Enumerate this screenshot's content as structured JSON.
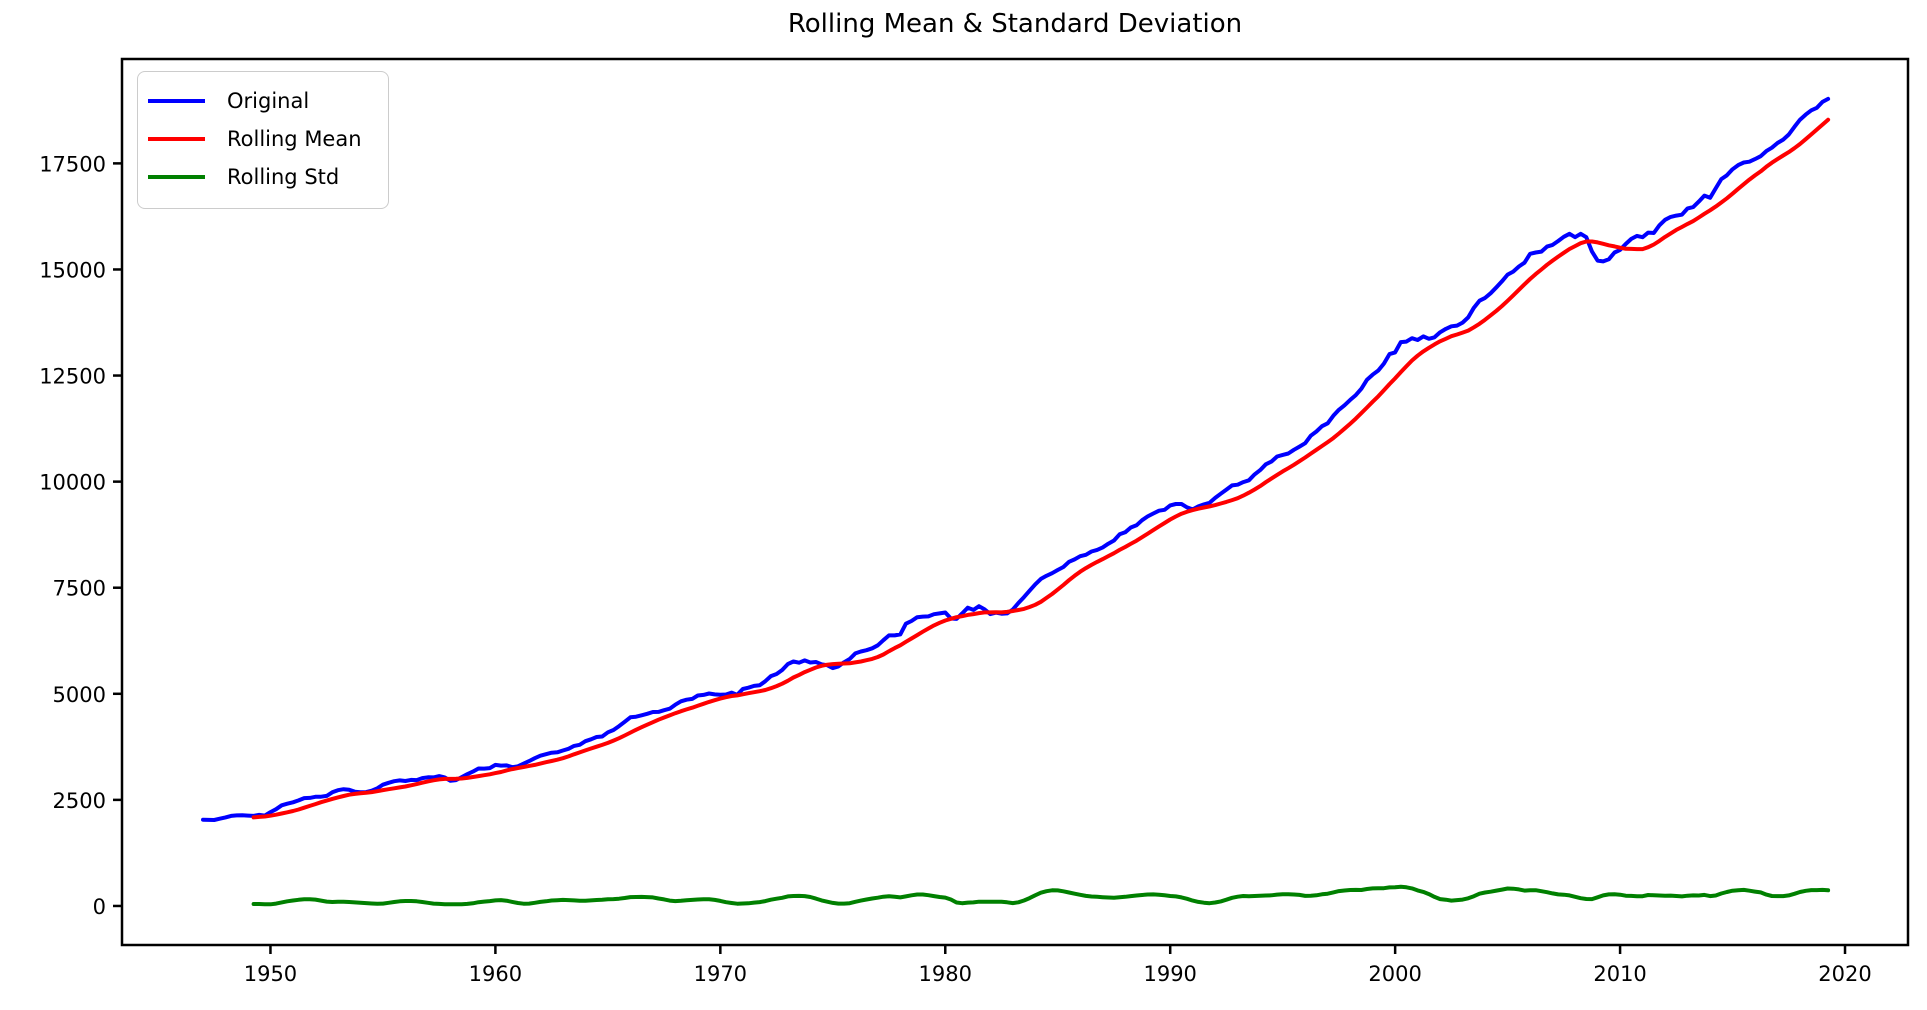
{
  "chart_data": {
    "type": "line",
    "title": "Rolling Mean & Standard Deviation",
    "xlabel": "",
    "ylabel": "",
    "grid": false,
    "legend_position": "upper left",
    "xlim": [
      1943.4,
      2022.8
    ],
    "ylim": [
      -920,
      19960
    ],
    "x_tick_years": [
      1950,
      1960,
      1970,
      1980,
      1990,
      2000,
      2010,
      2020
    ],
    "x_tick_labels": [
      "1950",
      "1960",
      "1970",
      "1980",
      "1990",
      "2000",
      "2010",
      "2020"
    ],
    "y_tick_values": [
      0,
      2500,
      5000,
      7500,
      10000,
      12500,
      15000,
      17500
    ],
    "y_tick_labels": [
      "0",
      "2500",
      "5000",
      "7500",
      "10000",
      "12500",
      "15000",
      "17500"
    ],
    "x_start": 1947.0,
    "x_step": 0.25,
    "rolling_window": 10,
    "series": [
      {
        "name": "Original",
        "color": "#0000ff",
        "derived": "none",
        "values": [
          2034,
          2029,
          2025,
          2056,
          2087,
          2122,
          2135,
          2137,
          2130,
          2123,
          2147,
          2129,
          2212,
          2281,
          2372,
          2411,
          2444,
          2488,
          2542,
          2547,
          2573,
          2574,
          2593,
          2679,
          2729,
          2751,
          2737,
          2692,
          2681,
          2684,
          2717,
          2773,
          2858,
          2902,
          2941,
          2958,
          2945,
          2970,
          2967,
          3013,
          3031,
          3030,
          3060,
          3028,
          2949,
          2966,
          3034,
          3106,
          3166,
          3240,
          3238,
          3249,
          3324,
          3308,
          3313,
          3271,
          3291,
          3352,
          3413,
          3482,
          3540,
          3577,
          3613,
          3622,
          3663,
          3704,
          3771,
          3797,
          3882,
          3928,
          3982,
          3994,
          4093,
          4147,
          4239,
          4340,
          4445,
          4461,
          4493,
          4529,
          4570,
          4574,
          4613,
          4648,
          4744,
          4823,
          4860,
          4880,
          4960,
          4975,
          5008,
          4985,
          4977,
          4983,
          5029,
          4976,
          5114,
          5143,
          5186,
          5200,
          5296,
          5418,
          5467,
          5560,
          5699,
          5761,
          5732,
          5787,
          5737,
          5750,
          5695,
          5673,
          5605,
          5646,
          5743,
          5820,
          5952,
          5996,
          6028,
          6072,
          6143,
          6264,
          6377,
          6377,
          6399,
          6652,
          6716,
          6806,
          6819,
          6825,
          6876,
          6894,
          6916,
          6774,
          6766,
          6893,
          7030,
          6978,
          7064,
          6990,
          6879,
          6912,
          6887,
          6894,
          6984,
          7140,
          7278,
          7429,
          7577,
          7707,
          7780,
          7843,
          7918,
          7989,
          8110,
          8168,
          8243,
          8276,
          8354,
          8392,
          8451,
          8538,
          8612,
          8758,
          8806,
          8920,
          8972,
          9090,
          9181,
          9249,
          9316,
          9336,
          9441,
          9473,
          9474,
          9392,
          9346,
          9417,
          9464,
          9501,
          9617,
          9716,
          9812,
          9912,
          9928,
          9988,
          10032,
          10170,
          10271,
          10409,
          10473,
          10593,
          10629,
          10662,
          10751,
          10825,
          10905,
          11082,
          11181,
          11307,
          11375,
          11552,
          11694,
          11800,
          11927,
          12039,
          12190,
          12403,
          12520,
          12618,
          12781,
          13006,
          13046,
          13289,
          13301,
          13381,
          13337,
          13422,
          13365,
          13402,
          13520,
          13600,
          13660,
          13676,
          13748,
          13870,
          14100,
          14265,
          14330,
          14440,
          14580,
          14720,
          14880,
          14950,
          15070,
          15160,
          15370,
          15400,
          15420,
          15540,
          15580,
          15670,
          15770,
          15840,
          15760,
          15840,
          15760,
          15420,
          15210,
          15190,
          15240,
          15400,
          15460,
          15600,
          15720,
          15790,
          15760,
          15870,
          15860,
          16040,
          16170,
          16240,
          16270,
          16290,
          16440,
          16470,
          16600,
          16740,
          16690,
          16910,
          17130,
          17220,
          17360,
          17460,
          17520,
          17540,
          17600,
          17670,
          17790,
          17870,
          17980,
          18060,
          18180,
          18360,
          18530,
          18650,
          18750,
          18810,
          18950,
          19020
        ]
      },
      {
        "name": "Rolling Mean",
        "color": "#ff0000",
        "derived": "rolling_mean_of_Original"
      },
      {
        "name": "Rolling Std",
        "color": "#008000",
        "derived": "rolling_std_of_Original"
      }
    ]
  },
  "figure": {
    "background_color": "#ffffff",
    "spine_color": "#000000"
  }
}
